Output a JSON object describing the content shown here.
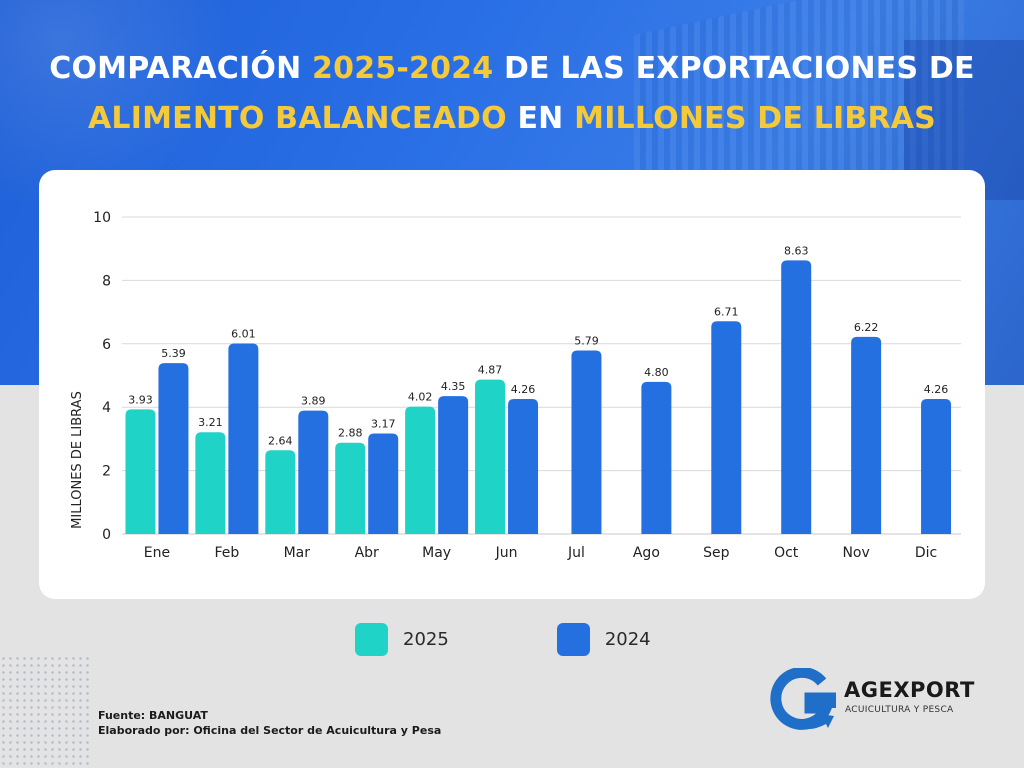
{
  "header": {
    "title_line1_part1": "COMPARACIÓN ",
    "title_line1_part2": "2025-2024",
    "title_line1_part3": " DE LAS EXPORTACIONES DE",
    "title_line2_part1": "ALIMENTO BALANCEADO",
    "title_line2_part2": " EN ",
    "title_line2_part3": "MILLONES DE LIBRAS"
  },
  "colors": {
    "series_2025": "#1fd3c6",
    "series_2024": "#2570e0",
    "title_highlight": "#f4c93a",
    "grid": "#d9d9d9"
  },
  "chart_data": {
    "type": "bar",
    "title": "COMPARACIÓN 2025-2024 DE LAS EXPORTACIONES DE ALIMENTO BALANCEADO EN MILLONES DE LIBRAS",
    "xlabel": "",
    "ylabel": "MILLONES DE LIBRAS",
    "ylim": [
      0,
      10
    ],
    "yticks": [
      "0",
      "2",
      "4",
      "6",
      "8",
      "10"
    ],
    "grid": true,
    "legend_position": "bottom-center",
    "categories": [
      "Ene",
      "Feb",
      "Mar",
      "Abr",
      "May",
      "Jun",
      "Jul",
      "Ago",
      "Sep",
      "Oct",
      "Nov",
      "Dic"
    ],
    "series": [
      {
        "name": "2025",
        "values": [
          3.93,
          3.21,
          2.64,
          2.88,
          4.02,
          4.87,
          null,
          null,
          null,
          null,
          null,
          null
        ],
        "labels": [
          "3.93",
          "3.21",
          "2.64",
          "2.88",
          "4.02",
          "4.87",
          "",
          "",
          "",
          "",
          "",
          ""
        ]
      },
      {
        "name": "2024",
        "values": [
          5.39,
          6.01,
          3.89,
          3.17,
          4.35,
          4.26,
          5.79,
          4.8,
          6.71,
          8.63,
          6.22,
          4.26
        ],
        "labels": [
          "5.39",
          "6.01",
          "3.89",
          "3.17",
          "4.35",
          "4.26",
          "5.79",
          "4.80",
          "6.71",
          "8.63",
          "6.22",
          "4.26"
        ]
      }
    ]
  },
  "legend": {
    "items": [
      {
        "label": "2025"
      },
      {
        "label": "2024"
      }
    ]
  },
  "footer": {
    "source": "Fuente:  BANGUAT",
    "prepared_by": "Elaborado por:  Oficina del Sector de Acuicultura y Pesa"
  },
  "logo": {
    "name": "AGEXPORT",
    "subtitle": "ACUICULTURA Y PESCA",
    "icon": "agexport-g-arrow-icon"
  }
}
